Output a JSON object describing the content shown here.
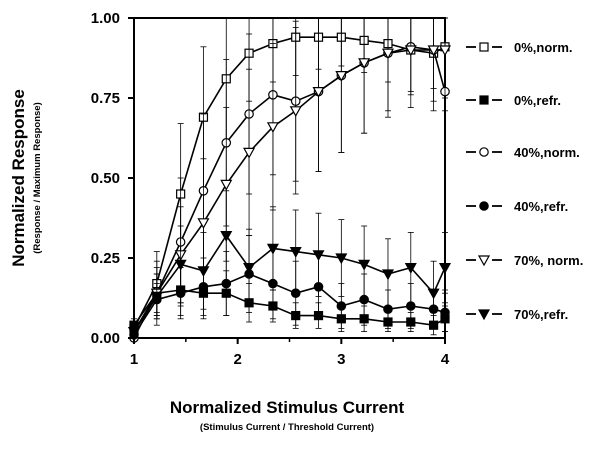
{
  "chart_data": {
    "type": "line",
    "xlabel": "Normalized Stimulus Current",
    "xlabel_sub": "(Stimulus Current / Threshold Current)",
    "ylabel": "Normalized Response",
    "ylabel_sub": "(Response / Maximum Response)",
    "xlim": [
      1,
      4
    ],
    "ylim": [
      0,
      1
    ],
    "x_ticks": [
      1,
      2,
      3,
      4
    ],
    "x_tick_labels": [
      "1",
      "2",
      "3",
      "4"
    ],
    "y_ticks": [
      0,
      0.25,
      0.5,
      0.75,
      1
    ],
    "y_tick_labels": [
      "0.00",
      "0.25",
      "0.50",
      "0.75",
      "1.00"
    ],
    "grid": false,
    "legend_position": "right",
    "series": [
      {
        "name": "0%,norm.",
        "marker": "square",
        "filled": false,
        "x": [
          1.0,
          1.22,
          1.45,
          1.67,
          1.89,
          2.11,
          2.34,
          2.56,
          2.78,
          3.0,
          3.22,
          3.45,
          3.67,
          3.89,
          4.0
        ],
        "y": [
          0.03,
          0.17,
          0.45,
          0.69,
          0.81,
          0.89,
          0.92,
          0.94,
          0.94,
          0.94,
          0.93,
          0.92,
          0.9,
          0.89,
          0.91
        ],
        "err": [
          0.02,
          0.1,
          0.22,
          0.22,
          0.19,
          0.15,
          0.12,
          0.12,
          0.1,
          0.09,
          0.1,
          0.12,
          0.14,
          0.18,
          0.2
        ]
      },
      {
        "name": "0%,refr.",
        "marker": "square",
        "filled": true,
        "x": [
          1.0,
          1.22,
          1.45,
          1.67,
          1.89,
          2.11,
          2.34,
          2.56,
          2.78,
          3.0,
          3.22,
          3.45,
          3.67,
          3.89,
          4.0
        ],
        "y": [
          0.04,
          0.14,
          0.15,
          0.14,
          0.14,
          0.11,
          0.1,
          0.07,
          0.07,
          0.06,
          0.06,
          0.05,
          0.05,
          0.04,
          0.06
        ],
        "err": [
          0.02,
          0.06,
          0.08,
          0.08,
          0.07,
          0.06,
          0.05,
          0.04,
          0.04,
          0.04,
          0.04,
          0.03,
          0.03,
          0.03,
          0.04
        ]
      },
      {
        "name": "40%,norm.",
        "marker": "circle",
        "filled": false,
        "x": [
          1.0,
          1.22,
          1.45,
          1.67,
          1.89,
          2.11,
          2.34,
          2.56,
          2.78,
          3.0,
          3.22,
          3.45,
          3.67,
          3.89,
          4.0
        ],
        "y": [
          0.0,
          0.14,
          0.3,
          0.46,
          0.61,
          0.7,
          0.76,
          0.74,
          0.77,
          0.82,
          0.86,
          0.89,
          0.91,
          0.9,
          0.77
        ],
        "err": [
          0.01,
          0.1,
          0.2,
          0.24,
          0.26,
          0.25,
          0.25,
          0.25,
          0.25,
          0.24,
          0.22,
          0.18,
          0.14,
          0.12,
          0.62
        ]
      },
      {
        "name": "40%,refr.",
        "marker": "circle",
        "filled": true,
        "x": [
          1.0,
          1.22,
          1.45,
          1.67,
          1.89,
          2.11,
          2.34,
          2.56,
          2.78,
          3.0,
          3.22,
          3.45,
          3.67,
          3.89,
          4.0
        ],
        "y": [
          0.01,
          0.12,
          0.14,
          0.16,
          0.17,
          0.2,
          0.17,
          0.14,
          0.16,
          0.1,
          0.12,
          0.09,
          0.1,
          0.09,
          0.08
        ],
        "err": [
          0.01,
          0.05,
          0.08,
          0.09,
          0.1,
          0.12,
          0.11,
          0.1,
          0.1,
          0.07,
          0.08,
          0.06,
          0.07,
          0.06,
          0.06
        ]
      },
      {
        "name": "70%, norm.",
        "marker": "triangle-down",
        "filled": false,
        "x": [
          1.0,
          1.22,
          1.45,
          1.67,
          1.89,
          2.11,
          2.34,
          2.56,
          2.78,
          3.0,
          3.22,
          3.45,
          3.67,
          3.89,
          4.0
        ],
        "y": [
          0.02,
          0.14,
          0.26,
          0.36,
          0.48,
          0.58,
          0.66,
          0.71,
          0.77,
          0.82,
          0.86,
          0.89,
          0.9,
          0.9,
          0.9
        ],
        "err": [
          0.01,
          0.08,
          0.15,
          0.2,
          0.24,
          0.26,
          0.26,
          0.26,
          0.25,
          0.24,
          0.22,
          0.2,
          0.18,
          0.16,
          0.15
        ]
      },
      {
        "name": "70%,refr.",
        "marker": "triangle-down",
        "filled": true,
        "x": [
          1.0,
          1.22,
          1.45,
          1.67,
          1.89,
          2.11,
          2.34,
          2.56,
          2.78,
          3.0,
          3.22,
          3.45,
          3.67,
          3.89,
          4.0
        ],
        "y": [
          0.02,
          0.13,
          0.23,
          0.21,
          0.32,
          0.22,
          0.28,
          0.27,
          0.26,
          0.25,
          0.23,
          0.2,
          0.22,
          0.14,
          0.22
        ],
        "err": [
          0.01,
          0.07,
          0.12,
          0.12,
          0.14,
          0.12,
          0.13,
          0.13,
          0.13,
          0.12,
          0.12,
          0.11,
          0.11,
          0.1,
          0.11
        ]
      }
    ]
  }
}
